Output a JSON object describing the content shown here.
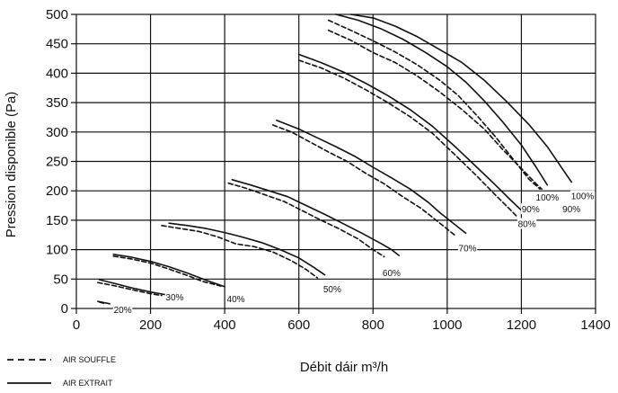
{
  "chart_data": {
    "type": "line",
    "xlabel": "Débit dáir m³/h",
    "ylabel": "Pression disponible (Pa)",
    "xlim": [
      0,
      1400
    ],
    "ylim": [
      0,
      500
    ],
    "x_ticks": [
      0,
      200,
      400,
      600,
      800,
      1000,
      1200,
      1400
    ],
    "y_ticks": [
      0,
      50,
      100,
      150,
      200,
      250,
      300,
      350,
      400,
      450,
      500
    ],
    "grid": true,
    "legend": {
      "placement": "bottom-left",
      "entries": [
        {
          "label": "AIR SOUFFLE",
          "dash": "dashed"
        },
        {
          "label": "AIR EXTRAIT",
          "dash": "solid"
        }
      ]
    },
    "curve_labels": [
      {
        "text": "20%",
        "x": 125,
        "y": -3
      },
      {
        "text": "30%",
        "x": 265,
        "y": 18
      },
      {
        "text": "40%",
        "x": 430,
        "y": 15
      },
      {
        "text": "50%",
        "x": 690,
        "y": 32
      },
      {
        "text": "60%",
        "x": 850,
        "y": 60
      },
      {
        "text": "70%",
        "x": 1055,
        "y": 102
      },
      {
        "text": "80%",
        "x": 1215,
        "y": 143
      },
      {
        "text": "90%",
        "x": 1225,
        "y": 168
      },
      {
        "text": "100%",
        "x": 1270,
        "y": 188
      },
      {
        "text": "90%",
        "x": 1335,
        "y": 168
      },
      {
        "text": "100%",
        "x": 1365,
        "y": 190
      }
    ],
    "series": [
      {
        "name": "AIR EXTRAIT",
        "level": "20%",
        "style": "solid",
        "points": [
          [
            58,
            12
          ],
          [
            75,
            10
          ],
          [
            90,
            8
          ]
        ]
      },
      {
        "name": "AIR SOUFFLE",
        "level": "20%",
        "style": "dashed",
        "points": [
          [
            62,
            11
          ],
          [
            78,
            8
          ]
        ]
      },
      {
        "name": "AIR EXTRAIT",
        "level": "30%",
        "style": "solid",
        "points": [
          [
            62,
            49
          ],
          [
            100,
            43
          ],
          [
            150,
            35
          ],
          [
            200,
            28
          ],
          [
            245,
            23
          ]
        ]
      },
      {
        "name": "AIR SOUFFLE",
        "level": "30%",
        "style": "dashed",
        "points": [
          [
            58,
            44
          ],
          [
            100,
            39
          ],
          [
            150,
            32
          ],
          [
            200,
            25
          ],
          [
            230,
            22
          ]
        ]
      },
      {
        "name": "AIR EXTRAIT",
        "level": "40%",
        "style": "solid",
        "points": [
          [
            100,
            92
          ],
          [
            150,
            87
          ],
          [
            200,
            80
          ],
          [
            250,
            71
          ],
          [
            300,
            60
          ],
          [
            350,
            48
          ],
          [
            400,
            37
          ]
        ]
      },
      {
        "name": "AIR SOUFFLE",
        "level": "40%",
        "style": "dashed",
        "points": [
          [
            100,
            89
          ],
          [
            150,
            84
          ],
          [
            200,
            77
          ],
          [
            250,
            67
          ],
          [
            300,
            56
          ],
          [
            340,
            46
          ],
          [
            390,
            38
          ]
        ]
      },
      {
        "name": "AIR EXTRAIT",
        "level": "50%",
        "style": "solid",
        "points": [
          [
            250,
            145
          ],
          [
            300,
            141
          ],
          [
            350,
            136
          ],
          [
            400,
            129
          ],
          [
            450,
            121
          ],
          [
            500,
            112
          ],
          [
            550,
            100
          ],
          [
            600,
            86
          ],
          [
            640,
            70
          ],
          [
            670,
            57
          ]
        ]
      },
      {
        "name": "AIR SOUFFLE",
        "level": "50%",
        "style": "dashed",
        "points": [
          [
            230,
            141
          ],
          [
            280,
            136
          ],
          [
            330,
            131
          ],
          [
            380,
            122
          ],
          [
            430,
            110
          ],
          [
            480,
            105
          ],
          [
            530,
            96
          ],
          [
            580,
            81
          ],
          [
            620,
            66
          ],
          [
            650,
            52
          ]
        ]
      },
      {
        "name": "AIR EXTRAIT",
        "level": "60%",
        "style": "solid",
        "points": [
          [
            420,
            219
          ],
          [
            470,
            210
          ],
          [
            520,
            200
          ],
          [
            570,
            190
          ],
          [
            620,
            175
          ],
          [
            670,
            160
          ],
          [
            720,
            144
          ],
          [
            770,
            128
          ],
          [
            820,
            111
          ],
          [
            850,
            100
          ],
          [
            870,
            90
          ]
        ]
      },
      {
        "name": "AIR SOUFFLE",
        "level": "60%",
        "style": "dashed",
        "points": [
          [
            410,
            213
          ],
          [
            460,
            204
          ],
          [
            510,
            193
          ],
          [
            560,
            182
          ],
          [
            610,
            166
          ],
          [
            660,
            150
          ],
          [
            710,
            135
          ],
          [
            760,
            118
          ],
          [
            800,
            100
          ],
          [
            830,
            88
          ]
        ]
      },
      {
        "name": "AIR EXTRAIT",
        "level": "70%",
        "style": "solid",
        "points": [
          [
            540,
            320
          ],
          [
            600,
            305
          ],
          [
            650,
            290
          ],
          [
            700,
            275
          ],
          [
            750,
            259
          ],
          [
            800,
            240
          ],
          [
            850,
            222
          ],
          [
            900,
            203
          ],
          [
            950,
            180
          ],
          [
            980,
            163
          ],
          [
            1010,
            148
          ],
          [
            1050,
            128
          ]
        ]
      },
      {
        "name": "AIR SOUFFLE",
        "level": "70%",
        "style": "dashed",
        "points": [
          [
            530,
            312
          ],
          [
            580,
            300
          ],
          [
            630,
            283
          ],
          [
            680,
            266
          ],
          [
            730,
            250
          ],
          [
            780,
            230
          ],
          [
            830,
            212
          ],
          [
            880,
            190
          ],
          [
            930,
            170
          ],
          [
            970,
            150
          ],
          [
            1000,
            135
          ],
          [
            1020,
            125
          ]
        ]
      },
      {
        "name": "AIR EXTRAIT",
        "level": "80%",
        "style": "solid",
        "points": [
          [
            600,
            432
          ],
          [
            660,
            418
          ],
          [
            720,
            402
          ],
          [
            780,
            383
          ],
          [
            840,
            362
          ],
          [
            900,
            338
          ],
          [
            960,
            310
          ],
          [
            1020,
            276
          ],
          [
            1080,
            240
          ],
          [
            1130,
            210
          ],
          [
            1170,
            185
          ],
          [
            1200,
            167
          ]
        ]
      },
      {
        "name": "AIR SOUFFLE",
        "level": "80%",
        "style": "dashed",
        "points": [
          [
            600,
            422
          ],
          [
            660,
            409
          ],
          [
            720,
            392
          ],
          [
            780,
            372
          ],
          [
            840,
            350
          ],
          [
            900,
            326
          ],
          [
            960,
            298
          ],
          [
            1020,
            262
          ],
          [
            1080,
            225
          ],
          [
            1130,
            193
          ],
          [
            1170,
            168
          ],
          [
            1190,
            155
          ]
        ]
      },
      {
        "name": "AIR EXTRAIT",
        "level": "90%",
        "style": "solid",
        "points": [
          [
            700,
            500
          ],
          [
            760,
            490
          ],
          [
            820,
            476
          ],
          [
            880,
            458
          ],
          [
            940,
            436
          ],
          [
            1000,
            411
          ],
          [
            1050,
            385
          ],
          [
            1100,
            353
          ],
          [
            1150,
            317
          ],
          [
            1200,
            278
          ],
          [
            1240,
            240
          ],
          [
            1270,
            210
          ]
        ]
      },
      {
        "name": "AIR SOUFFLE",
        "level": "90%",
        "style": "dashed",
        "points": [
          [
            680,
            490
          ],
          [
            740,
            473
          ],
          [
            800,
            455
          ],
          [
            860,
            436
          ],
          [
            920,
            414
          ],
          [
            980,
            388
          ],
          [
            1030,
            362
          ],
          [
            1080,
            328
          ],
          [
            1130,
            292
          ],
          [
            1180,
            252
          ],
          [
            1220,
            220
          ],
          [
            1250,
            203
          ]
        ]
      },
      {
        "name": "AIR EXTRAIT",
        "level": "100%",
        "style": "solid",
        "points": [
          [
            740,
            500
          ],
          [
            800,
            494
          ],
          [
            860,
            480
          ],
          [
            920,
            462
          ],
          [
            980,
            440
          ],
          [
            1040,
            418
          ],
          [
            1100,
            388
          ],
          [
            1160,
            352
          ],
          [
            1220,
            313
          ],
          [
            1270,
            275
          ],
          [
            1310,
            238
          ],
          [
            1335,
            215
          ]
        ]
      },
      {
        "name": "AIR SOUFFLE",
        "level": "100%",
        "style": "dashed",
        "points": [
          [
            680,
            473
          ],
          [
            740,
            456
          ],
          [
            800,
            435
          ],
          [
            860,
            418
          ],
          [
            920,
            395
          ],
          [
            980,
            368
          ],
          [
            1040,
            338
          ],
          [
            1100,
            305
          ],
          [
            1150,
            270
          ],
          [
            1200,
            238
          ],
          [
            1240,
            212
          ],
          [
            1255,
            203
          ]
        ]
      }
    ]
  }
}
